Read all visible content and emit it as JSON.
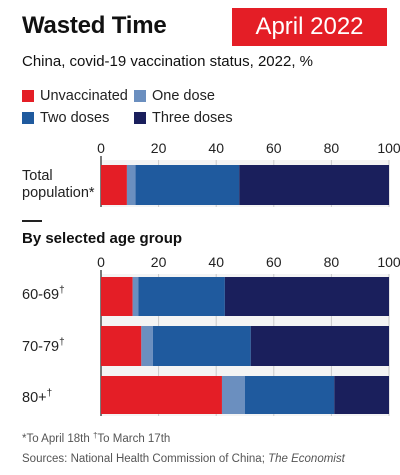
{
  "header": {
    "title": "Wasted Time",
    "badge": "April 2022",
    "subtitle": "China, covid-19 vaccination status, 2022, %"
  },
  "colors": {
    "Unvaccinated": "#e41e26",
    "One dose": "#6b8fbf",
    "Two doses": "#1f5a9e",
    "Three doses": "#1a1f5c",
    "badge": "#e41e26"
  },
  "legend": [
    "Unvaccinated",
    "One dose",
    "Two doses",
    "Three doses"
  ],
  "section_title": "By selected age group",
  "footnote": {
    "part1": "*To April 18th",
    "dagger": "†",
    "part2": "To March 17th"
  },
  "source": {
    "prefix": "Sources: National Health Commission of China; ",
    "italic": "The Economist"
  },
  "chart_data": {
    "type": "bar",
    "orientation": "horizontal",
    "stacked": true,
    "xlim": [
      0,
      100
    ],
    "xticks": [
      "0",
      "20",
      "40",
      "60",
      "80",
      "100"
    ],
    "groups": [
      {
        "label": "",
        "categories": [
          {
            "label_line1": "Total",
            "label_line2": "population*",
            "sup": ""
          }
        ]
      },
      {
        "label": "By selected age group",
        "categories": [
          {
            "label_line1": "60-69",
            "label_line2": "",
            "sup": "†"
          },
          {
            "label_line1": "70-79",
            "label_line2": "",
            "sup": "†"
          },
          {
            "label_line1": "80+",
            "label_line2": "",
            "sup": "†"
          }
        ]
      }
    ],
    "series": [
      {
        "name": "Unvaccinated",
        "values": [
          9,
          11,
          14,
          42
        ]
      },
      {
        "name": "One dose",
        "values": [
          3,
          2,
          4,
          8
        ]
      },
      {
        "name": "Two doses",
        "values": [
          36,
          30,
          34,
          31
        ]
      },
      {
        "name": "Three doses",
        "values": [
          52,
          57,
          48,
          19
        ]
      }
    ]
  }
}
